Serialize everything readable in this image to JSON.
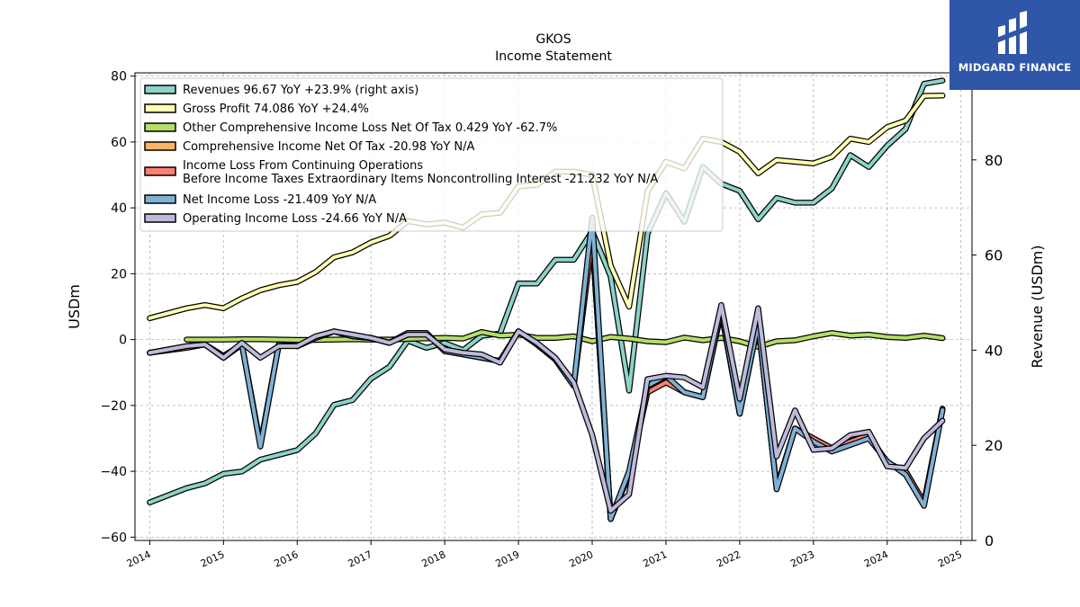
{
  "brand": {
    "name": "MIDGARD FINANCE",
    "bg_color": "#2f56a8"
  },
  "chart_data": {
    "type": "line",
    "title": "GKOS",
    "subtitle": "Income Statement",
    "ylabel": "USDm",
    "y2label": "Revenue (USDm)",
    "ylim": [
      -61,
      81
    ],
    "y2lim": [
      0,
      98.3
    ],
    "xlim": [
      2013.8,
      2025.15
    ],
    "x_ticks": [
      2014,
      2015,
      2016,
      2017,
      2018,
      2019,
      2020,
      2021,
      2022,
      2023,
      2024,
      2025
    ],
    "y_ticks": [
      -60,
      -40,
      -20,
      0,
      20,
      40,
      60,
      80
    ],
    "y2_ticks": [
      0,
      20,
      40,
      60,
      80
    ],
    "grid": true,
    "legend_position": "upper-left",
    "series": [
      {
        "name": "Revenues  96.67 YoY +23.9% (right axis)",
        "color": "#8dd3c7",
        "axis": "right",
        "x": [
          2014.0,
          2014.5,
          2014.75,
          2015.0,
          2015.25,
          2015.5,
          2015.75,
          2016.0,
          2016.25,
          2016.5,
          2016.75,
          2017.0,
          2017.25,
          2017.5,
          2017.75,
          2018.0,
          2018.25,
          2018.5,
          2018.75,
          2019.0,
          2019.25,
          2019.5,
          2019.75,
          2020.0,
          2020.25,
          2020.5,
          2020.75,
          2021.0,
          2021.25,
          2021.5,
          2021.75,
          2022.0,
          2022.25,
          2022.5,
          2022.75,
          2023.0,
          2023.25,
          2023.5,
          2023.75,
          2024.0,
          2024.25,
          2024.5,
          2024.75
        ],
        "values": [
          8,
          11,
          12,
          14,
          14.5,
          17,
          18,
          19,
          22.5,
          28.5,
          29.5,
          34,
          36.5,
          42,
          40.5,
          41.5,
          40,
          43,
          43.5,
          54,
          54,
          59,
          59,
          65,
          55.5,
          31.5,
          64.5,
          73,
          67,
          78.5,
          75,
          73.5,
          67.5,
          72,
          71,
          71,
          74,
          81,
          78.5,
          83,
          86.5,
          96,
          96.67
        ]
      },
      {
        "name": "Gross Profit  74.086 YoY +24.4%",
        "color": "#ffffb3",
        "axis": "left",
        "x": [
          2014.0,
          2014.5,
          2014.75,
          2015.0,
          2015.25,
          2015.5,
          2015.75,
          2016.0,
          2016.25,
          2016.5,
          2016.75,
          2017.0,
          2017.25,
          2017.5,
          2017.75,
          2018.0,
          2018.25,
          2018.5,
          2018.75,
          2019.0,
          2019.25,
          2019.5,
          2019.75,
          2020.0,
          2020.25,
          2020.5,
          2020.75,
          2021.0,
          2021.25,
          2021.5,
          2021.75,
          2022.0,
          2022.25,
          2022.5,
          2022.75,
          2023.0,
          2023.25,
          2023.5,
          2023.75,
          2024.0,
          2024.25,
          2024.5,
          2024.75
        ],
        "values": [
          6.5,
          9.5,
          10.5,
          9.5,
          12.5,
          15,
          16.5,
          17.5,
          20.5,
          25,
          26.5,
          29.5,
          31.5,
          36,
          35,
          35.5,
          34,
          38,
          38.5,
          46.5,
          47,
          51,
          51,
          50,
          22.5,
          10,
          45,
          54,
          52,
          61,
          60,
          57,
          50.5,
          54.5,
          54,
          53.5,
          55.5,
          61,
          60,
          64.5,
          66.5,
          74,
          74.086
        ]
      },
      {
        "name": "Other Comprehensive Income Loss Net Of Tax  0.429 YoY -62.7%",
        "color": "#b3de69",
        "axis": "left",
        "x": [
          2014.5,
          2014.75,
          2015.0,
          2015.25,
          2015.5,
          2015.75,
          2016.0,
          2016.25,
          2016.5,
          2016.75,
          2017.0,
          2017.25,
          2017.5,
          2017.75,
          2018.0,
          2018.25,
          2018.5,
          2018.75,
          2019.0,
          2019.25,
          2019.5,
          2019.75,
          2020.0,
          2020.25,
          2020.5,
          2020.75,
          2021.0,
          2021.25,
          2021.5,
          2021.75,
          2022.0,
          2022.25,
          2022.5,
          2022.75,
          2023.0,
          2023.25,
          2023.5,
          2023.75,
          2024.0,
          2024.25,
          2024.5,
          2024.75
        ],
        "values": [
          0,
          0,
          0,
          0.1,
          0.1,
          0,
          -0.1,
          -0.1,
          0,
          0.1,
          0,
          0,
          0.2,
          0.4,
          0.5,
          0.3,
          2.3,
          1.2,
          1.5,
          0.5,
          0.5,
          1,
          -0.5,
          0.8,
          0.3,
          -0.5,
          -0.8,
          0.6,
          -0.2,
          0.5,
          -0.5,
          -2.2,
          -0.5,
          -0.2,
          1,
          2,
          1.2,
          1.5,
          0.8,
          0.5,
          1.2,
          0.429
        ]
      },
      {
        "name": "Comprehensive Income Net Of Tax  -20.98 YoY N/A",
        "color": "#fdb462",
        "axis": "left",
        "x": [
          2014.0,
          2014.5,
          2014.75,
          2015.0,
          2015.25,
          2015.5,
          2015.75,
          2016.0,
          2016.25,
          2016.5,
          2016.75,
          2017.0,
          2017.25,
          2017.5,
          2017.75,
          2018.0,
          2018.25,
          2018.5,
          2018.75,
          2019.0,
          2019.25,
          2019.5,
          2019.75,
          2020.0,
          2020.25,
          2020.5,
          2020.75,
          2021.0,
          2021.25,
          2021.5,
          2021.75,
          2022.0,
          2022.25,
          2022.5,
          2022.75,
          2023.0,
          2023.25,
          2023.5,
          2023.75,
          2024.0,
          2024.25,
          2024.5,
          2024.75
        ],
        "values": [
          -4,
          -2,
          -1.5,
          -5,
          -1.5,
          -32,
          -1.5,
          -2,
          0.5,
          2.5,
          1,
          0.5,
          -1,
          2,
          2,
          -3.5,
          -4.5,
          -5.5,
          -6.5,
          2.5,
          -1.5,
          -6,
          -14,
          31,
          -54.5,
          -41,
          -15,
          -13,
          -16,
          -17.5,
          8.5,
          -22.5,
          5,
          -45,
          -27,
          -30,
          -33,
          -31,
          -29,
          -37.5,
          -40,
          -49.5,
          -20.98
        ]
      },
      {
        "name": "Income Loss From Continuing Operations\nBefore Income Taxes Extraordinary Items Noncontrolling Interest  -21.232 YoY N/A",
        "color": "#fb8072",
        "axis": "left",
        "x": [
          2014.0,
          2014.5,
          2014.75,
          2015.0,
          2015.25,
          2015.5,
          2015.75,
          2016.0,
          2016.25,
          2016.5,
          2016.75,
          2017.0,
          2017.25,
          2017.5,
          2017.75,
          2018.0,
          2018.25,
          2018.5,
          2018.75,
          2019.0,
          2019.25,
          2019.5,
          2019.75,
          2020.0,
          2020.25,
          2020.5,
          2020.75,
          2021.0,
          2021.25,
          2021.5,
          2021.75,
          2022.0,
          2022.25,
          2022.5,
          2022.75,
          2023.0,
          2023.25,
          2023.5,
          2023.75,
          2024.0,
          2024.25,
          2024.5,
          2024.75
        ],
        "values": [
          -4,
          -2.5,
          -1.5,
          -5.5,
          -1.5,
          -32,
          -1.5,
          -2,
          0.5,
          2.5,
          1,
          0.5,
          -1,
          2,
          2,
          -3.5,
          -4.5,
          -5.5,
          -6.5,
          2.5,
          -1.5,
          -6,
          -14,
          31,
          -54,
          -41,
          -16,
          -13,
          -16,
          -17.5,
          8.5,
          -22.5,
          5,
          -45,
          -27,
          -30,
          -33,
          -31,
          -29,
          -37.5,
          -40,
          -49.5,
          -21.232
        ]
      },
      {
        "name": "Net Income Loss  -21.409 YoY N/A",
        "color": "#80b1d3",
        "axis": "left",
        "x": [
          2014.0,
          2014.5,
          2014.75,
          2015.0,
          2015.25,
          2015.5,
          2015.75,
          2016.0,
          2016.25,
          2016.5,
          2016.75,
          2017.0,
          2017.25,
          2017.5,
          2017.75,
          2018.0,
          2018.25,
          2018.5,
          2018.75,
          2019.0,
          2019.25,
          2019.5,
          2019.75,
          2020.0,
          2020.25,
          2020.5,
          2020.75,
          2021.0,
          2021.25,
          2021.5,
          2021.75,
          2022.0,
          2022.25,
          2022.5,
          2022.75,
          2023.0,
          2023.25,
          2023.5,
          2023.75,
          2024.0,
          2024.25,
          2024.5,
          2024.75
        ],
        "values": [
          -4,
          -2,
          -1.5,
          -5,
          -1.5,
          -32.5,
          -1.5,
          -2,
          0.5,
          2.5,
          1,
          0.5,
          -1,
          2,
          2,
          -3.5,
          -4.5,
          -5.5,
          -6.5,
          2.5,
          -1.5,
          -6,
          -14,
          37,
          -54.5,
          -40,
          -14,
          -11,
          -16,
          -17.5,
          9,
          -22.5,
          5,
          -45.5,
          -27,
          -31,
          -34,
          -32,
          -30,
          -37,
          -41,
          -50.5,
          -21.409
        ]
      },
      {
        "name": "Operating Income Loss  -24.66 YoY N/A",
        "color": "#bebada",
        "axis": "left",
        "x": [
          2014.0,
          2014.5,
          2014.75,
          2015.0,
          2015.25,
          2015.5,
          2015.75,
          2016.0,
          2016.25,
          2016.5,
          2016.75,
          2017.0,
          2017.25,
          2017.5,
          2017.75,
          2018.0,
          2018.25,
          2018.5,
          2018.75,
          2019.0,
          2019.25,
          2019.5,
          2019.75,
          2020.0,
          2020.25,
          2020.5,
          2020.75,
          2021.0,
          2021.25,
          2021.5,
          2021.75,
          2022.0,
          2022.25,
          2022.5,
          2022.75,
          2023.0,
          2023.25,
          2023.5,
          2023.75,
          2024.0,
          2024.25,
          2024.5,
          2024.75
        ],
        "values": [
          -4,
          -2,
          -1.5,
          -5.5,
          -1,
          -5.5,
          -2,
          -2,
          1,
          2.5,
          1.5,
          0.5,
          -1,
          1.5,
          1.5,
          -3,
          -4,
          -4.5,
          -7,
          2.5,
          -1,
          -5.5,
          -13,
          -29,
          -52,
          -47,
          -12,
          -11,
          -11.5,
          -14.5,
          10.5,
          -18,
          9.5,
          -35.5,
          -21.5,
          -33.5,
          -33,
          -29,
          -28,
          -38.5,
          -39,
          -30,
          -24.66
        ]
      }
    ]
  }
}
